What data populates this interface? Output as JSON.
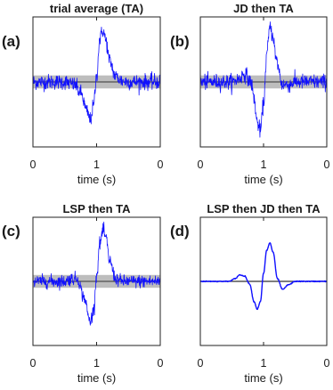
{
  "chart_data": [
    {
      "type": "line",
      "panel_label": "(a)",
      "title": "trial average (TA)",
      "xlabel": "time (s)",
      "xticks": [
        "0",
        "1",
        "0"
      ],
      "colors": {
        "trace": "#1010ff",
        "band": "#bdbdbd",
        "reference": "#333333"
      },
      "noise_std": 0.07,
      "band_halfwidth": 0.12,
      "series": [
        {
          "x": [
            0,
            0.5,
            0.65,
            0.75,
            0.85,
            0.9,
            0.95,
            1.0,
            1.05,
            1.1,
            1.15,
            1.2,
            1.3,
            1.4,
            1.5,
            2
          ],
          "y": [
            0,
            0,
            -0.05,
            -0.2,
            -0.55,
            -0.7,
            -0.45,
            0.1,
            0.8,
            0.95,
            0.75,
            0.4,
            0.1,
            0.02,
            0,
            0
          ]
        }
      ]
    },
    {
      "type": "line",
      "panel_label": "(b)",
      "title": "JD then TA",
      "xlabel": "time (s)",
      "xticks": [
        "0",
        "1",
        "0"
      ],
      "colors": {
        "trace": "#1010ff",
        "band": "#bdbdbd",
        "reference": "#333333"
      },
      "noise_std": 0.07,
      "band_halfwidth": 0.12,
      "series": [
        {
          "x": [
            0,
            0.5,
            0.6,
            0.7,
            0.8,
            0.85,
            0.9,
            0.95,
            1.0,
            1.05,
            1.1,
            1.15,
            1.2,
            1.3,
            1.4,
            1.5,
            2
          ],
          "y": [
            0,
            0,
            0.05,
            0.15,
            0.0,
            -0.3,
            -0.75,
            -0.9,
            -0.4,
            0.5,
            1.0,
            0.85,
            0.4,
            -0.05,
            -0.05,
            0,
            0
          ]
        }
      ]
    },
    {
      "type": "line",
      "panel_label": "(c)",
      "title": "LSP then TA",
      "xlabel": "time (s)",
      "xticks": [
        "0",
        "1",
        "0"
      ],
      "colors": {
        "trace": "#1010ff",
        "band": "#bdbdbd",
        "reference": "#333333"
      },
      "noise_std": 0.06,
      "band_halfwidth": 0.12,
      "series": [
        {
          "x": [
            0,
            0.5,
            0.6,
            0.7,
            0.8,
            0.9,
            0.95,
            1.0,
            1.05,
            1.1,
            1.15,
            1.2,
            1.3,
            1.4,
            1.5,
            2
          ],
          "y": [
            0,
            0,
            0.05,
            0.05,
            -0.3,
            -0.75,
            -0.55,
            0.1,
            0.7,
            0.95,
            0.8,
            0.4,
            0.05,
            0,
            0,
            0
          ]
        }
      ]
    },
    {
      "type": "line",
      "panel_label": "(d)",
      "title": "LSP then JD then TA",
      "xlabel": "time (s)",
      "xticks": [
        "0",
        "1",
        "0"
      ],
      "colors": {
        "trace": "#1010ff",
        "band": "#bdbdbd",
        "reference": "#333333"
      },
      "noise_std": 0.004,
      "band_halfwidth": 0.015,
      "series": [
        {
          "x": [
            0,
            0.45,
            0.55,
            0.62,
            0.7,
            0.78,
            0.85,
            0.9,
            0.95,
            1.0,
            1.05,
            1.1,
            1.15,
            1.22,
            1.3,
            1.4,
            1.5,
            2
          ],
          "y": [
            0,
            0,
            0.05,
            0.12,
            0.1,
            -0.05,
            -0.38,
            -0.52,
            -0.38,
            0.15,
            0.58,
            0.72,
            0.55,
            0.05,
            -0.15,
            -0.06,
            0,
            0
          ]
        }
      ]
    }
  ]
}
